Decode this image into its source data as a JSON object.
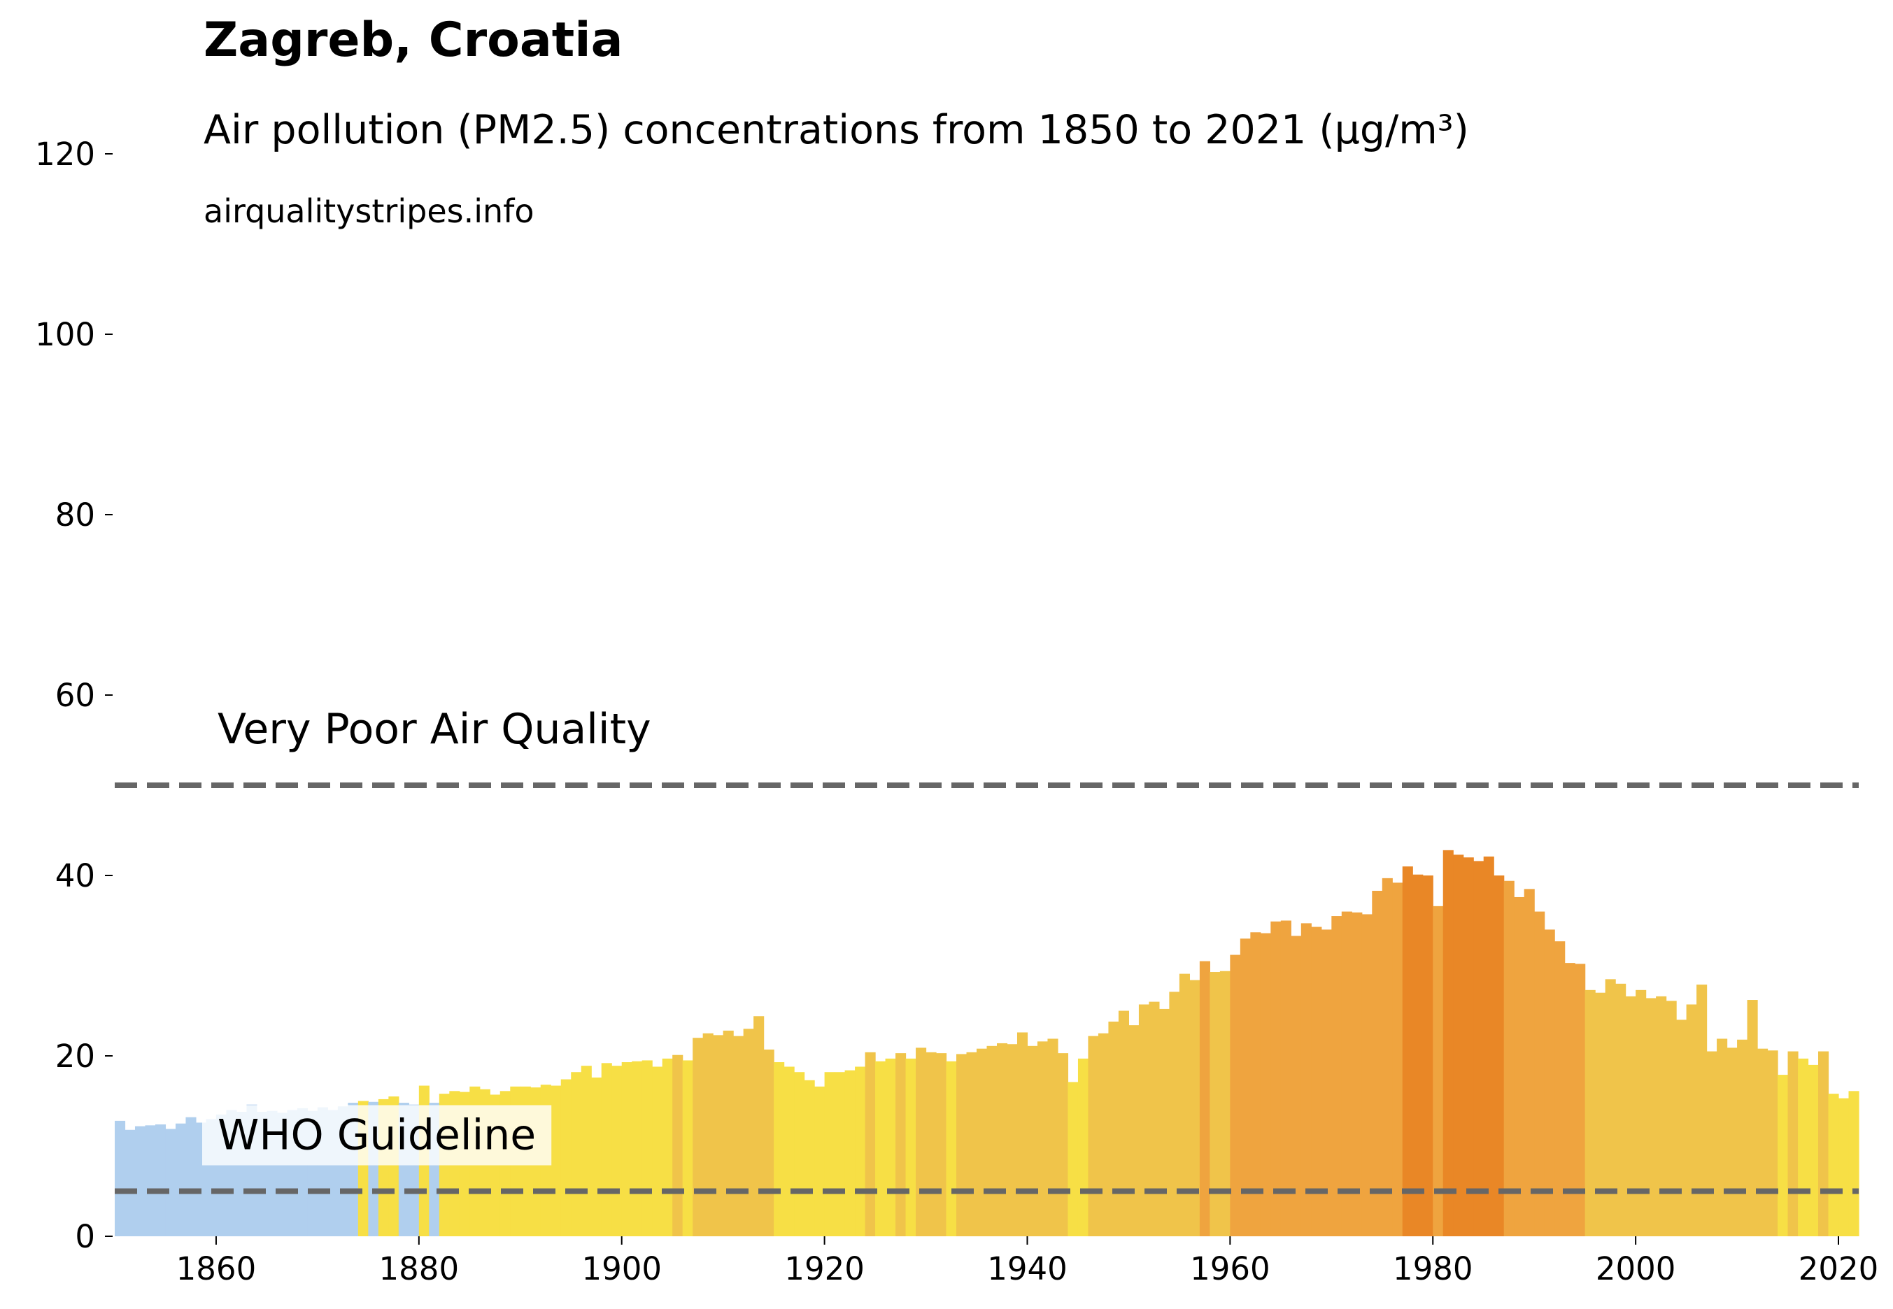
{
  "chart_data": {
    "type": "bar",
    "title": "Zagreb, Croatia",
    "subtitle": "Air pollution (PM2.5) concentrations from 1850 to 2021 (µg/m³)",
    "source": "airqualitystripes.info",
    "x": [
      1850,
      1851,
      1852,
      1853,
      1854,
      1855,
      1856,
      1857,
      1858,
      1859,
      1860,
      1861,
      1862,
      1863,
      1864,
      1865,
      1866,
      1867,
      1868,
      1869,
      1870,
      1871,
      1872,
      1873,
      1874,
      1875,
      1876,
      1877,
      1878,
      1879,
      1880,
      1881,
      1882,
      1883,
      1884,
      1885,
      1886,
      1887,
      1888,
      1889,
      1890,
      1891,
      1892,
      1893,
      1894,
      1895,
      1896,
      1897,
      1898,
      1899,
      1900,
      1901,
      1902,
      1903,
      1904,
      1905,
      1906,
      1907,
      1908,
      1909,
      1910,
      1911,
      1912,
      1913,
      1914,
      1915,
      1916,
      1917,
      1918,
      1919,
      1920,
      1921,
      1922,
      1923,
      1924,
      1925,
      1926,
      1927,
      1928,
      1929,
      1930,
      1931,
      1932,
      1933,
      1934,
      1935,
      1936,
      1937,
      1938,
      1939,
      1940,
      1941,
      1942,
      1943,
      1944,
      1945,
      1946,
      1947,
      1948,
      1949,
      1950,
      1951,
      1952,
      1953,
      1954,
      1955,
      1956,
      1957,
      1958,
      1959,
      1960,
      1961,
      1962,
      1963,
      1964,
      1965,
      1966,
      1967,
      1968,
      1969,
      1970,
      1971,
      1972,
      1973,
      1974,
      1975,
      1976,
      1977,
      1978,
      1979,
      1980,
      1981,
      1982,
      1983,
      1984,
      1985,
      1986,
      1987,
      1988,
      1989,
      1990,
      1991,
      1992,
      1993,
      1994,
      1995,
      1996,
      1997,
      1998,
      1999,
      2000,
      2001,
      2002,
      2003,
      2004,
      2005,
      2006,
      2007,
      2008,
      2009,
      2010,
      2011,
      2012,
      2013,
      2014,
      2015,
      2016,
      2017,
      2018,
      2019,
      2020,
      2021
    ],
    "values": [
      12.8,
      11.8,
      12.2,
      12.3,
      12.4,
      11.9,
      12.5,
      13.2,
      12.6,
      13.0,
      13.5,
      14.0,
      13.8,
      14.6,
      13.8,
      13.9,
      13.7,
      14.0,
      14.2,
      13.9,
      14.3,
      14.0,
      14.4,
      14.8,
      15.0,
      14.9,
      15.2,
      15.5,
      14.8,
      14.6,
      16.7,
      14.8,
      15.8,
      16.1,
      16.0,
      16.6,
      16.3,
      15.7,
      16.1,
      16.6,
      16.6,
      16.5,
      16.8,
      16.7,
      17.4,
      18.2,
      18.9,
      17.6,
      19.2,
      18.9,
      19.3,
      19.4,
      19.5,
      18.8,
      19.7,
      20.1,
      19.5,
      22.0,
      22.5,
      22.3,
      22.8,
      22.2,
      23.0,
      24.4,
      20.7,
      19.3,
      18.8,
      18.2,
      17.3,
      16.6,
      18.2,
      18.2,
      18.4,
      18.8,
      20.4,
      19.4,
      19.7,
      20.3,
      19.7,
      20.9,
      20.4,
      20.3,
      19.4,
      20.2,
      20.4,
      20.8,
      21.1,
      21.4,
      21.3,
      22.6,
      21.1,
      21.6,
      21.9,
      20.3,
      17.1,
      19.7,
      22.2,
      22.5,
      23.8,
      25.0,
      23.4,
      25.7,
      26.0,
      25.2,
      27.1,
      29.1,
      28.4,
      30.5,
      29.3,
      29.4,
      31.2,
      33.0,
      33.7,
      33.6,
      34.9,
      35.0,
      33.3,
      34.7,
      34.3,
      34.0,
      35.5,
      36.0,
      35.9,
      35.7,
      38.3,
      39.7,
      39.2,
      41.0,
      40.1,
      40.0,
      36.6,
      42.8,
      42.3,
      42.0,
      41.6,
      42.1,
      40.0,
      39.4,
      37.6,
      38.5,
      36.0,
      34.0,
      32.7,
      30.3,
      30.2,
      27.3,
      27.0,
      28.5,
      28.0,
      26.6,
      27.3,
      26.4,
      26.6,
      26.1,
      24.0,
      25.7,
      27.9,
      20.5,
      21.9,
      20.9,
      21.8,
      26.2,
      20.8,
      20.6,
      17.9,
      20.5,
      19.7,
      19.0,
      20.5,
      15.8,
      15.3,
      16.1
    ],
    "colors": [
      "#b0cfee",
      "#b0cfee",
      "#b0cfee",
      "#b0cfee",
      "#b0cfee",
      "#b0cfee",
      "#b0cfee",
      "#b0cfee",
      "#b0cfee",
      "#b0cfee",
      "#b0cfee",
      "#b0cfee",
      "#b0cfee",
      "#b0cfee",
      "#b0cfee",
      "#b0cfee",
      "#b0cfee",
      "#b0cfee",
      "#b0cfee",
      "#b0cfee",
      "#b0cfee",
      "#b0cfee",
      "#b0cfee",
      "#b0cfee",
      "#f7df45",
      "#b0cfee",
      "#f7df45",
      "#f7df45",
      "#b0cfee",
      "#b0cfee",
      "#f7df45",
      "#b0cfee",
      "#f7df45",
      "#f7df45",
      "#f7df45",
      "#f7df45",
      "#f7df45",
      "#f7df45",
      "#f7df45",
      "#f7df45",
      "#f7df45",
      "#f7df45",
      "#f7df45",
      "#f7df45",
      "#f7df45",
      "#f7df45",
      "#f7df45",
      "#f7df45",
      "#f7df45",
      "#f7df45",
      "#f7df45",
      "#f7df45",
      "#f7df45",
      "#f7df45",
      "#f7df45",
      "#f0c44a",
      "#f7df45",
      "#f0c44a",
      "#f0c44a",
      "#f0c44a",
      "#f0c44a",
      "#f0c44a",
      "#f0c44a",
      "#f0c44a",
      "#f0c44a",
      "#f7df45",
      "#f7df45",
      "#f7df45",
      "#f7df45",
      "#f7df45",
      "#f7df45",
      "#f7df45",
      "#f7df45",
      "#f7df45",
      "#f0c44a",
      "#f7df45",
      "#f7df45",
      "#f0c44a",
      "#f7df45",
      "#f0c44a",
      "#f0c44a",
      "#f0c44a",
      "#f7df45",
      "#f0c44a",
      "#f0c44a",
      "#f0c44a",
      "#f0c44a",
      "#f0c44a",
      "#f0c44a",
      "#f0c44a",
      "#f0c44a",
      "#f0c44a",
      "#f0c44a",
      "#f0c44a",
      "#f7df45",
      "#f7df45",
      "#f0c44a",
      "#f0c44a",
      "#f0c44a",
      "#f0c44a",
      "#f0c44a",
      "#f0c44a",
      "#f0c44a",
      "#f0c44a",
      "#f0c44a",
      "#f0c44a",
      "#f0c44a",
      "#efa43f",
      "#f0c44a",
      "#f0c44a",
      "#efa43f",
      "#efa43f",
      "#efa43f",
      "#efa43f",
      "#efa43f",
      "#efa43f",
      "#efa43f",
      "#efa43f",
      "#efa43f",
      "#efa43f",
      "#efa43f",
      "#efa43f",
      "#efa43f",
      "#efa43f",
      "#efa43f",
      "#efa43f",
      "#efa43f",
      "#e98726",
      "#e98726",
      "#e98726",
      "#efa43f",
      "#e98726",
      "#e98726",
      "#e98726",
      "#e98726",
      "#e98726",
      "#e98726",
      "#efa43f",
      "#efa43f",
      "#efa43f",
      "#efa43f",
      "#efa43f",
      "#efa43f",
      "#efa43f",
      "#efa43f",
      "#f0c44a",
      "#f0c44a",
      "#f0c44a",
      "#f0c44a",
      "#f0c44a",
      "#f0c44a",
      "#f0c44a",
      "#f0c44a",
      "#f0c44a",
      "#f0c44a",
      "#f0c44a",
      "#f0c44a",
      "#f0c44a",
      "#f0c44a",
      "#f0c44a",
      "#f0c44a",
      "#f0c44a",
      "#f0c44a",
      "#f0c44a",
      "#f7df45",
      "#f0c44a",
      "#f7df45",
      "#f7df45",
      "#f0c44a",
      "#f7df45",
      "#f7df45",
      "#f7df45"
    ],
    "reference_lines": [
      {
        "value": 50,
        "label": "Very Poor Air Quality"
      },
      {
        "value": 5,
        "label": "WHO Guideline"
      }
    ],
    "reference_color": "#666666",
    "xlim": [
      1850,
      2022
    ],
    "xticks": [
      1860,
      1880,
      1900,
      1920,
      1940,
      1960,
      1980,
      2000,
      2020
    ],
    "ylim": [
      0,
      120
    ],
    "yticks": [
      0,
      20,
      40,
      60,
      80,
      100,
      120
    ]
  }
}
